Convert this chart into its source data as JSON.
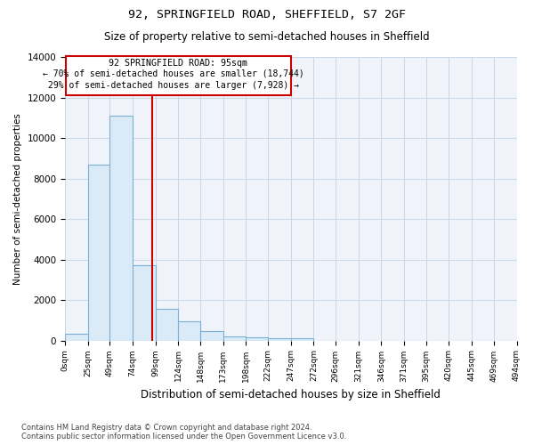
{
  "title1": "92, SPRINGFIELD ROAD, SHEFFIELD, S7 2GF",
  "title2": "Size of property relative to semi-detached houses in Sheffield",
  "xlabel": "Distribution of semi-detached houses by size in Sheffield",
  "ylabel": "Number of semi-detached properties",
  "footnote": "Contains HM Land Registry data © Crown copyright and database right 2024.\nContains public sector information licensed under the Open Government Licence v3.0.",
  "bin_edges": [
    0,
    25,
    49,
    74,
    99,
    124,
    148,
    173,
    198,
    222,
    247,
    272,
    296,
    321,
    346,
    371,
    395,
    420,
    445,
    469,
    494
  ],
  "bar_heights": [
    350,
    8700,
    11100,
    3700,
    1550,
    950,
    450,
    200,
    150,
    120,
    100,
    0,
    0,
    0,
    0,
    0,
    0,
    0,
    0,
    0
  ],
  "bar_color": "#daeaf7",
  "bar_edge_color": "#7ab0d4",
  "grid_color": "#c8d8e8",
  "red_line_x": 95,
  "annotation_title": "92 SPRINGFIELD ROAD: 95sqm",
  "annotation_line1": "← 70% of semi-detached houses are smaller (18,744)",
  "annotation_line2": "29% of semi-detached houses are larger (7,928) →",
  "annotation_box_color": "#ffffff",
  "annotation_border_color": "#cc0000",
  "ylim": [
    0,
    14000
  ],
  "yticks": [
    0,
    2000,
    4000,
    6000,
    8000,
    10000,
    12000,
    14000
  ],
  "xtick_labels": [
    "0sqm",
    "25sqm",
    "49sqm",
    "74sqm",
    "99sqm",
    "124sqm",
    "148sqm",
    "173sqm",
    "198sqm",
    "222sqm",
    "247sqm",
    "272sqm",
    "296sqm",
    "321sqm",
    "346sqm",
    "371sqm",
    "395sqm",
    "420sqm",
    "445sqm",
    "469sqm",
    "494sqm"
  ]
}
